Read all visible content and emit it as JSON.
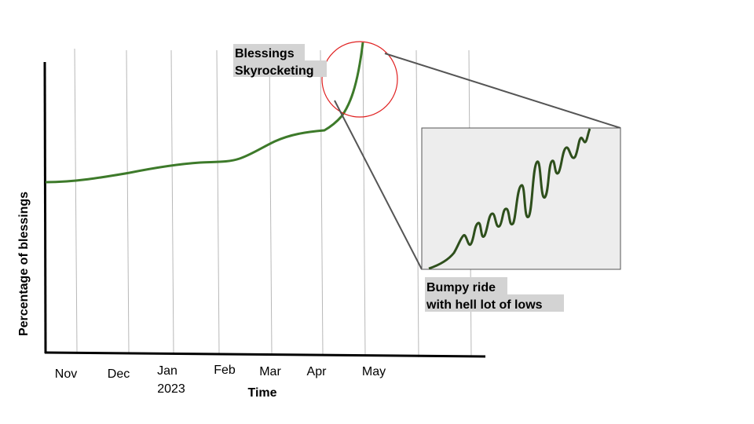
{
  "chart_data": {
    "type": "line",
    "title": "",
    "xlabel": "Time",
    "ylabel": "Percentage of blessings",
    "x_ticks": [
      {
        "lines": [
          "Nov"
        ]
      },
      {
        "lines": [
          "Dec"
        ]
      },
      {
        "lines": [
          "Jan",
          "2023"
        ]
      },
      {
        "lines": [
          "Feb"
        ]
      },
      {
        "lines": [
          "Mar"
        ]
      },
      {
        "lines": [
          "Apr"
        ]
      },
      {
        "lines": [
          "May"
        ]
      }
    ],
    "grid": true,
    "series_color": "#3d7a2a",
    "inset_color": "#2e4f1c",
    "highlight_color": "#e02020",
    "annotations": {
      "peak_label": [
        "Blessings",
        "Skyrocketing"
      ],
      "zoom_label": [
        "Bumpy ride",
        "with hell lot of lows"
      ]
    }
  }
}
